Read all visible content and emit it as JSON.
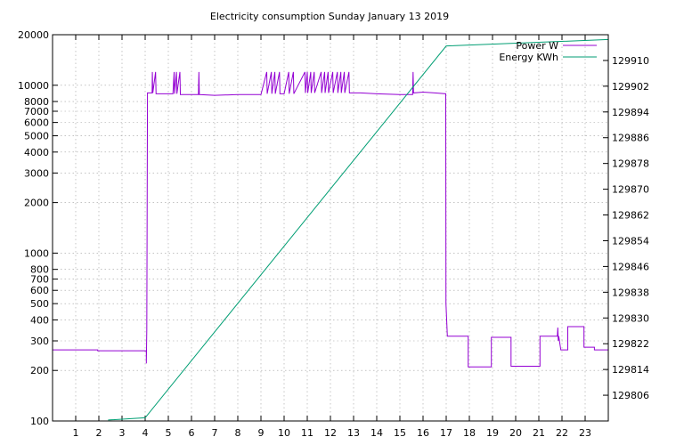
{
  "chart_data": {
    "type": "line",
    "title": "Electricity consumption Sunday January 13 2019",
    "xlabel": "",
    "ylabel": "",
    "y2label": "",
    "grid": true,
    "legend_position": "top-right",
    "x_range": [
      0,
      24
    ],
    "x_ticks": [
      1,
      2,
      3,
      4,
      5,
      6,
      7,
      8,
      9,
      10,
      11,
      12,
      13,
      14,
      15,
      16,
      17,
      18,
      19,
      20,
      21,
      22,
      23
    ],
    "y_scale": "log",
    "y_range": [
      100,
      20000
    ],
    "y_ticks": [
      100,
      200,
      300,
      400,
      500,
      600,
      700,
      800,
      1000,
      2000,
      3000,
      4000,
      5000,
      6000,
      7000,
      8000,
      10000,
      20000
    ],
    "y2_range": [
      129798,
      129918
    ],
    "y2_ticks": [
      129806,
      129814,
      129822,
      129830,
      129838,
      129846,
      129854,
      129862,
      129870,
      129878,
      129886,
      129894,
      129902,
      129910
    ],
    "series": [
      {
        "name": "Power W",
        "axis": "left",
        "color": "#9400d3",
        "points": [
          [
            0,
            265
          ],
          [
            1.95,
            265
          ],
          [
            1.95,
            262
          ],
          [
            4.05,
            262
          ],
          [
            4.05,
            220
          ],
          [
            4.07,
            350
          ],
          [
            4.1,
            9000
          ],
          [
            4.3,
            9000
          ],
          [
            4.31,
            12000
          ],
          [
            4.33,
            9000
          ],
          [
            4.45,
            12000
          ],
          [
            4.47,
            8900
          ],
          [
            4.6,
            8900
          ],
          [
            5.2,
            8900
          ],
          [
            5.25,
            12000
          ],
          [
            5.27,
            8900
          ],
          [
            5.35,
            12000
          ],
          [
            5.37,
            8900
          ],
          [
            5.5,
            12000
          ],
          [
            5.52,
            8800
          ],
          [
            6,
            8800
          ],
          [
            6.3,
            8800
          ],
          [
            6.32,
            12000
          ],
          [
            6.34,
            8800
          ],
          [
            7,
            8700
          ],
          [
            8,
            8800
          ],
          [
            9,
            8800
          ],
          [
            9.25,
            12000
          ],
          [
            9.27,
            8900
          ],
          [
            9.45,
            12000
          ],
          [
            9.47,
            8900
          ],
          [
            9.6,
            12000
          ],
          [
            9.62,
            8900
          ],
          [
            9.8,
            12000
          ],
          [
            9.82,
            8900
          ],
          [
            10,
            8900
          ],
          [
            10.2,
            12000
          ],
          [
            10.22,
            8900
          ],
          [
            10.4,
            12000
          ],
          [
            10.42,
            8900
          ],
          [
            10.9,
            12000
          ],
          [
            10.92,
            9000
          ],
          [
            11.0,
            12000
          ],
          [
            11.02,
            9000
          ],
          [
            11.15,
            12000
          ],
          [
            11.17,
            9000
          ],
          [
            11.3,
            12000
          ],
          [
            11.32,
            9000
          ],
          [
            11.6,
            12000
          ],
          [
            11.62,
            9000
          ],
          [
            11.75,
            12000
          ],
          [
            11.77,
            9000
          ],
          [
            11.9,
            12000
          ],
          [
            11.92,
            9000
          ],
          [
            12.1,
            12000
          ],
          [
            12.12,
            9000
          ],
          [
            12.3,
            12000
          ],
          [
            12.32,
            9000
          ],
          [
            12.45,
            12000
          ],
          [
            12.47,
            9000
          ],
          [
            12.6,
            12000
          ],
          [
            12.62,
            9000
          ],
          [
            12.8,
            12000
          ],
          [
            12.82,
            9000
          ],
          [
            13,
            9000
          ],
          [
            13.3,
            9000
          ],
          [
            14,
            8900
          ],
          [
            15,
            8800
          ],
          [
            15.55,
            8800
          ],
          [
            15.57,
            12000
          ],
          [
            15.59,
            9000
          ],
          [
            16,
            9100
          ],
          [
            16.5,
            9000
          ],
          [
            16.98,
            8900
          ],
          [
            16.99,
            500
          ],
          [
            17.05,
            320
          ],
          [
            17.95,
            320
          ],
          [
            17.95,
            210
          ],
          [
            18.95,
            210
          ],
          [
            18.95,
            315
          ],
          [
            19.8,
            315
          ],
          [
            19.8,
            212
          ],
          [
            21.05,
            212
          ],
          [
            21.05,
            320
          ],
          [
            21.8,
            320
          ],
          [
            21.82,
            360
          ],
          [
            21.84,
            300
          ],
          [
            21.86,
            320
          ],
          [
            21.95,
            265
          ],
          [
            22.25,
            265
          ],
          [
            22.25,
            365
          ],
          [
            22.95,
            365
          ],
          [
            22.95,
            275
          ],
          [
            23.4,
            275
          ],
          [
            23.4,
            265
          ],
          [
            24,
            265
          ]
        ]
      },
      {
        "name": "Energy KWh",
        "axis": "right",
        "color": "#009e73",
        "points": [
          [
            2.4,
            129798.3
          ],
          [
            4.0,
            129799.0
          ],
          [
            17.0,
            129914.5
          ],
          [
            24,
            129916.5
          ]
        ]
      }
    ]
  }
}
